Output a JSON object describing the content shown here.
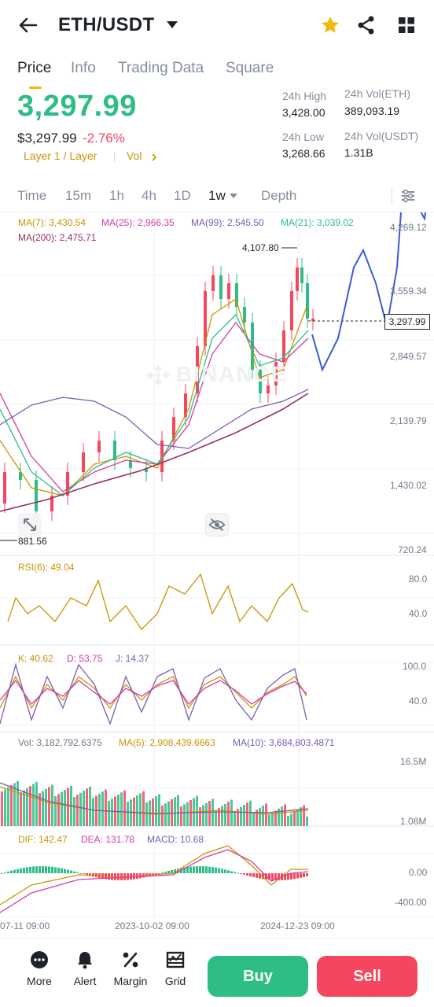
{
  "header": {
    "pair": "ETH/USDT",
    "icons": [
      "back-arrow-icon",
      "caret-down-icon",
      "star-icon",
      "share-icon",
      "grid-icon"
    ],
    "star_color": "#f0b90b"
  },
  "tabs": [
    {
      "label": "Price",
      "active": true
    },
    {
      "label": "Info"
    },
    {
      "label": "Trading Data"
    },
    {
      "label": "Square"
    }
  ],
  "price": {
    "last": "3,297.99",
    "usd": "$3,297.99",
    "change": "-2.76%",
    "tag_layer": "Layer 1 / Layer",
    "tag_vol": "Vol",
    "up_color": "#2ebd85",
    "down_color": "#f6465d"
  },
  "stats": {
    "high_label": "24h High",
    "high": "3,428.00",
    "vol_eth_label": "24h Vol(ETH)",
    "vol_eth": "389,093.19",
    "low_label": "24h Low",
    "low": "3,268.66",
    "vol_usdt_label": "24h Vol(USDT)",
    "vol_usdt": "1.31B"
  },
  "timeframes": [
    {
      "label": "Time"
    },
    {
      "label": "15m"
    },
    {
      "label": "1h"
    },
    {
      "label": "4h"
    },
    {
      "label": "1D"
    },
    {
      "label": "1w",
      "active": true
    },
    {
      "label": "Depth"
    }
  ],
  "ma_legend": {
    "ma7": "MA(7): 3,430.54",
    "ma25": "MA(25): 2,966.35",
    "ma99": "MA(99): 2,545.50",
    "ma21": "MA(21): 3,039.02",
    "ma200": "MA(200): 2,475.71"
  },
  "price_axis": [
    "4,269.12",
    "3,559.34",
    "2,849.57",
    "2,139.79",
    "1,430.02",
    "720.24"
  ],
  "current_price_tag": "3,297.99",
  "peak_label": "4,107.80",
  "low_label": "881.56",
  "watermark": "BINANCE",
  "rsi": {
    "legend": "RSI(6): 49.04",
    "axis": [
      "80.0",
      "40.0"
    ]
  },
  "kdj": {
    "k": "K: 40.62",
    "d": "D: 53.75",
    "j": "J: 14.37",
    "axis": [
      "100.0",
      "40.0"
    ]
  },
  "vol": {
    "vol": "Vol: 3,182,792.6375",
    "ma5": "MA(5): 2,908,439.6663",
    "ma10": "MA(10): 3,684,803.4871",
    "axis": [
      "16.5M",
      "1.08M"
    ]
  },
  "macd": {
    "dif": "DIF: 142.47",
    "dea": "DEA: 131.78",
    "macd": "MACD: 10.68",
    "axis": [
      "0.00",
      "-400.00"
    ]
  },
  "dates": [
    "07-11 09:00",
    "2023-10-02 09:00",
    "2024-12-23 09:00"
  ],
  "bottom_nav": [
    {
      "label": "More",
      "icon": "more-icon"
    },
    {
      "label": "Alert",
      "icon": "bell-icon"
    },
    {
      "label": "Margin",
      "icon": "percent-icon"
    },
    {
      "label": "Grid",
      "icon": "grid-bot-icon"
    }
  ],
  "actions": {
    "buy": "Buy",
    "sell": "Sell"
  }
}
